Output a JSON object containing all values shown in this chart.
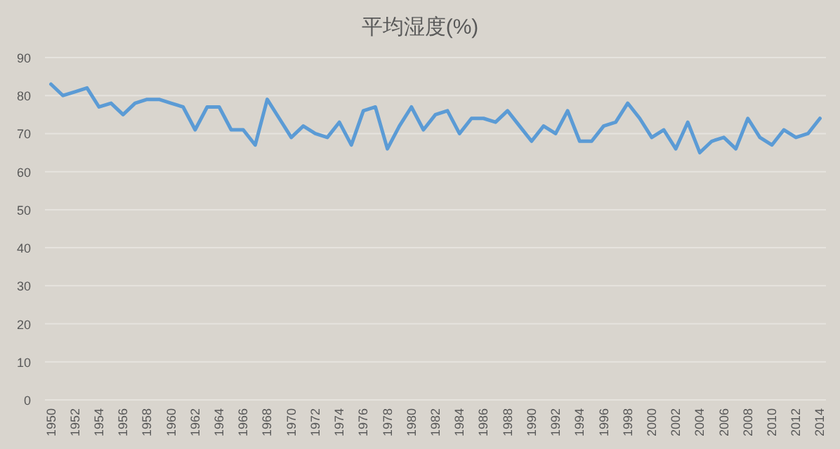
{
  "chart_data": {
    "type": "line",
    "title": "平均湿度(%)",
    "categories": [
      "1950",
      null,
      "1952",
      null,
      "1954",
      null,
      "1956",
      null,
      "1958",
      null,
      "1960",
      null,
      "1962",
      null,
      "1964",
      null,
      "1966",
      null,
      "1968",
      null,
      "1970",
      null,
      "1972",
      null,
      "1974",
      null,
      "1976",
      null,
      "1978",
      null,
      "1980",
      null,
      "1982",
      null,
      "1984",
      null,
      "1986",
      null,
      "1988",
      null,
      "1990",
      null,
      "1992",
      null,
      "1994",
      null,
      "1996",
      null,
      "1998",
      null,
      "2000",
      null,
      "2002",
      null,
      "2004",
      null,
      "2006",
      null,
      "2008",
      null,
      "2010",
      null,
      "2012",
      null,
      "2014"
    ],
    "series": [
      {
        "color": "#5b9bd5",
        "values": [
          83,
          80,
          81,
          82,
          77,
          78,
          75,
          78,
          79,
          79,
          78,
          77,
          71,
          77,
          77,
          71,
          71,
          67,
          79,
          74,
          69,
          72,
          70,
          69,
          73,
          67,
          76,
          77,
          66,
          72,
          77,
          71,
          75,
          76,
          70,
          74,
          74,
          73,
          76,
          72,
          68,
          72,
          70,
          76,
          68,
          68,
          72,
          73,
          78,
          74,
          69,
          71,
          66,
          73,
          65,
          68,
          69,
          66,
          74,
          69,
          67,
          71,
          69,
          70,
          74
        ]
      }
    ],
    "ylim": [
      0,
      90
    ],
    "yticks": [
      0,
      10,
      20,
      30,
      40,
      50,
      60,
      70,
      80,
      90
    ],
    "grid": "y",
    "marker": "none",
    "line_style": "solid"
  }
}
